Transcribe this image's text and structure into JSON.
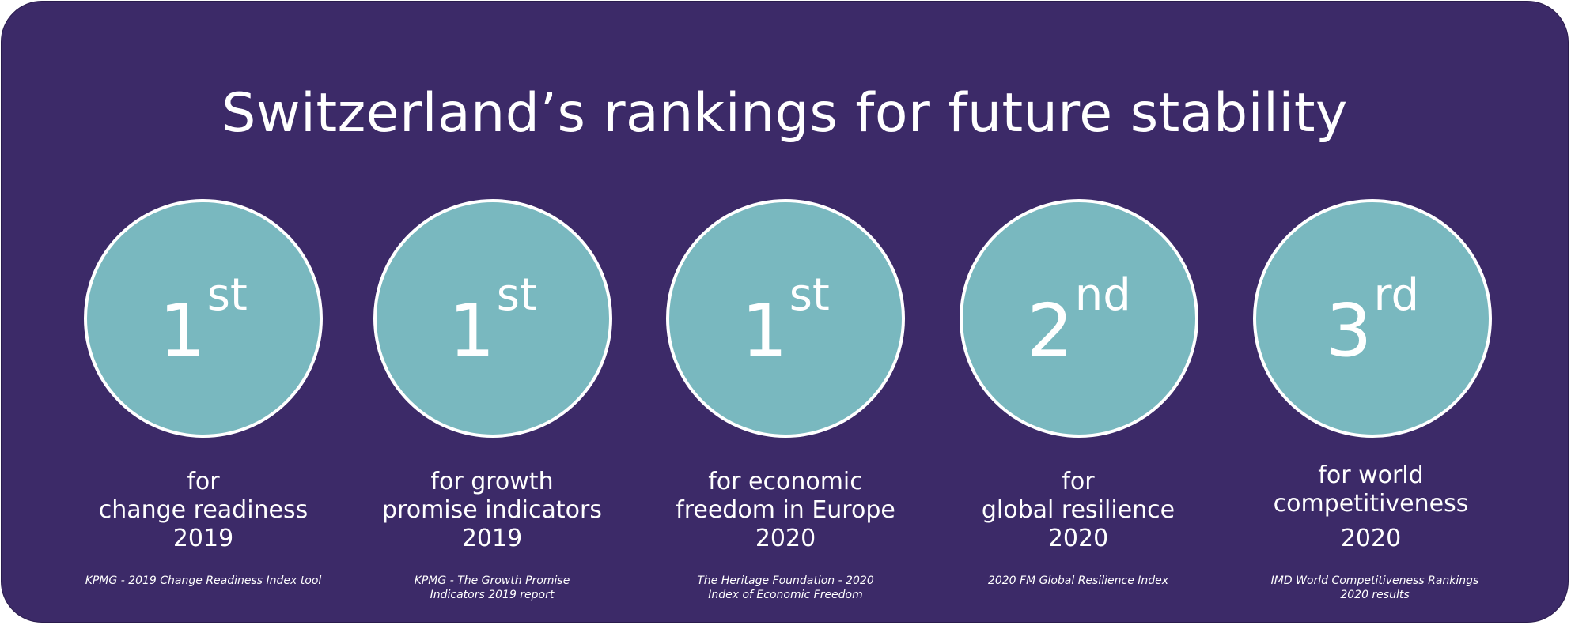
{
  "title": "Switzerland’s rankings for future stability",
  "colors": {
    "background": "#3c2a68",
    "circle_fill": "#79b8bf",
    "circle_border": "#ffffff",
    "text": "#ffffff"
  },
  "rankings": [
    {
      "number": "1",
      "suffix": "st",
      "line1": "for",
      "line2": "change readiness",
      "year": "2019",
      "source": "KPMG - 2019 Change Readiness Index tool"
    },
    {
      "number": "1",
      "suffix": "st",
      "line1": "for growth",
      "line2": "promise indicators",
      "year": "2019",
      "source": "KPMG - The Growth Promise Indicators 2019 report"
    },
    {
      "number": "1",
      "suffix": "st",
      "line1": "for economic",
      "line2": "freedom in Europe",
      "year": "2020",
      "source": "The Heritage Foundation - 2020 Index of Economic Freedom"
    },
    {
      "number": "2",
      "suffix": "nd",
      "line1": "for",
      "line2": "global resilience",
      "year": "2020",
      "source": "2020 FM Global Resilience Index"
    },
    {
      "number": "3",
      "suffix": "rd",
      "line1": "for world",
      "line2": "competitiveness",
      "year": "2020",
      "source": "IMD World Competitiveness Rankings 2020 results"
    }
  ]
}
